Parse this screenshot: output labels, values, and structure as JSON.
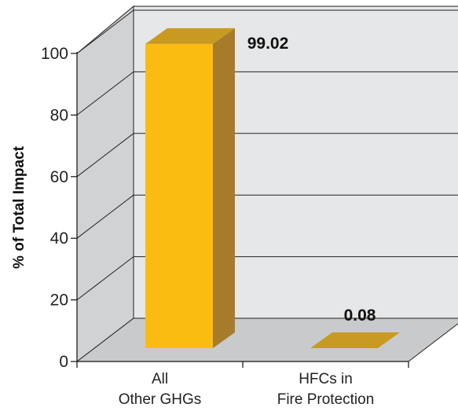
{
  "chart_data": {
    "type": "bar",
    "style": "3d",
    "categories": [
      [
        "All",
        "Other GHGs"
      ],
      [
        "HFCs in",
        "Fire Protection"
      ]
    ],
    "values": [
      99.02,
      0.08
    ],
    "data_labels": [
      "99.02",
      "0.08"
    ],
    "ylabel": "% of Total Impact",
    "ylim": [
      0,
      100
    ],
    "yticks": [
      0,
      20,
      40,
      60,
      80,
      100
    ],
    "ytick_labels": [
      "0",
      "20",
      "40",
      "60",
      "80",
      "100"
    ],
    "grid": true,
    "legend": "none"
  },
  "colors": {
    "back_wall": "#e6e7e8",
    "side_wall": "#d1d2d4",
    "floor": "#c9cacc",
    "grid": "#222222",
    "bar_front": "#fbbc12",
    "bar_top": "#c99a22",
    "bar_side": "#a67c2b"
  }
}
